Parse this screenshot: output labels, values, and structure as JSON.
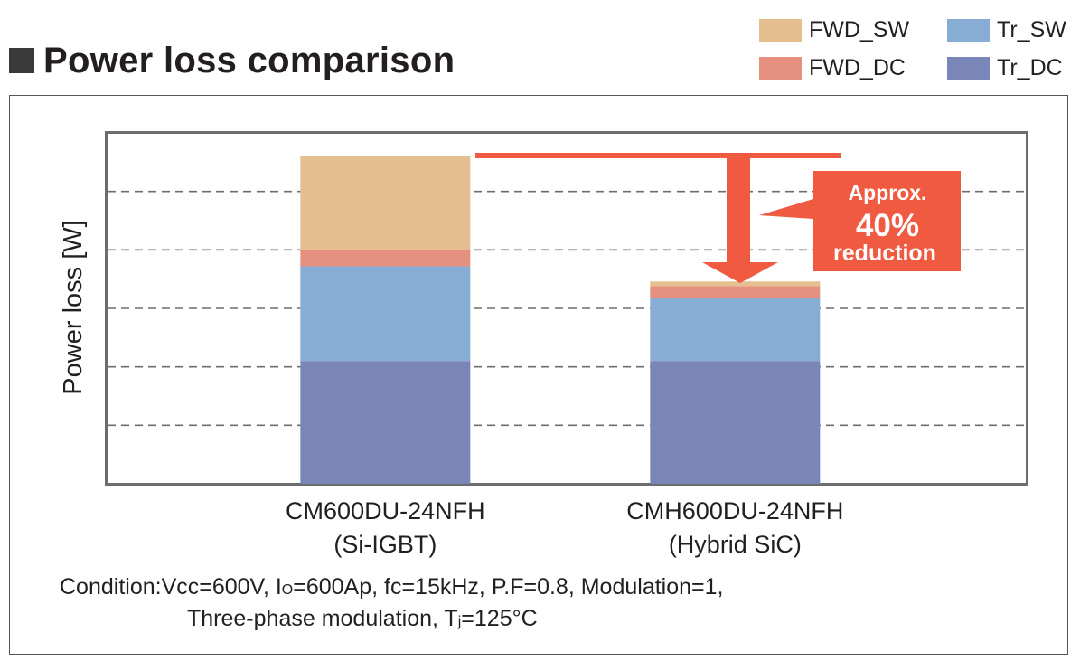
{
  "title": "Power loss comparison",
  "legend": [
    {
      "label": "FWD_SW",
      "color": "#e6bf90"
    },
    {
      "label": "Tr_SW",
      "color": "#87add4"
    },
    {
      "label": "FWD_DC",
      "color": "#e6907f"
    },
    {
      "label": "Tr_DC",
      "color": "#7a86b8"
    }
  ],
  "annotation": {
    "line1": "Approx.",
    "line2": "40%",
    "line3": "reduction",
    "color": "#ef5a41"
  },
  "condition": {
    "line1_a": "Condition:Vcc=600V, I",
    "line1_sub": "O",
    "line1_b": "=600Ap, fc=15kHz, P.F=0.8, Modulation=1,",
    "line2_a": "Three-phase modulation, T",
    "line2_sub": "j",
    "line2_b": "=125°C"
  },
  "chart_data": {
    "type": "bar",
    "stacked": true,
    "title": "Power loss comparison",
    "ylabel": "Power loss [W]",
    "xlabel": "",
    "ylim": [
      0,
      6
    ],
    "grid": true,
    "legend_position": "top-right",
    "y_tick_labels_shown": false,
    "categories": [
      [
        "CM600DU-24NFH",
        "(Si-IGBT)"
      ],
      [
        "CMH600DU-24NFH",
        "(Hybrid SiC)"
      ]
    ],
    "series": [
      {
        "name": "Tr_DC",
        "color": "#7a86b8",
        "values": [
          2.1,
          2.1
        ]
      },
      {
        "name": "Tr_SW",
        "color": "#87add4",
        "values": [
          1.62,
          1.08
        ]
      },
      {
        "name": "FWD_DC",
        "color": "#e6907f",
        "values": [
          0.27,
          0.2
        ]
      },
      {
        "name": "FWD_SW",
        "color": "#e6bf90",
        "values": [
          1.61,
          0.08
        ]
      }
    ],
    "annotation": "Approx. 40% reduction"
  }
}
